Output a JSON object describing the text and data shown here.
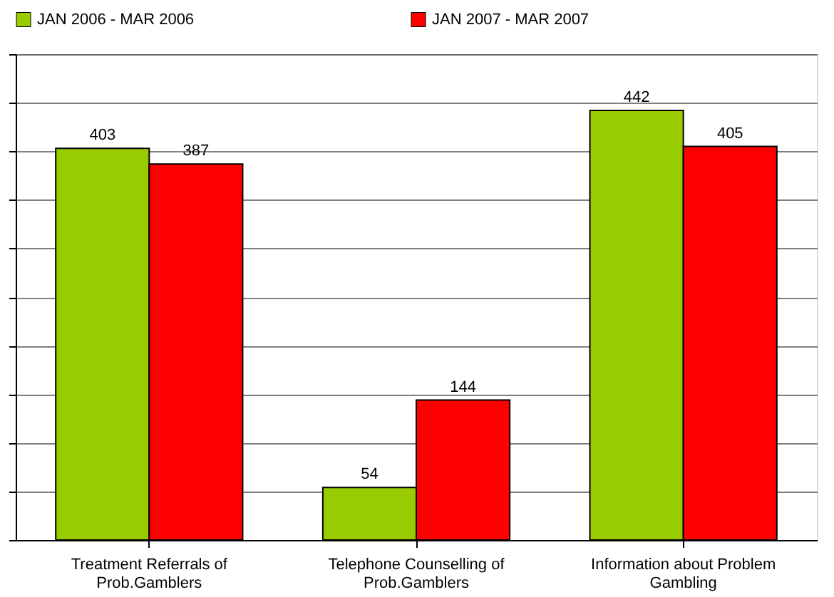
{
  "chart_data": {
    "type": "bar",
    "categories": [
      "Treatment Referrals of\nProb.Gamblers",
      "Telephone Counselling of\nProb.Gamblers",
      "Information about Problem\nGambling"
    ],
    "series": [
      {
        "name": "JAN 2006 - MAR 2006",
        "color": "#99cc00",
        "values": [
          403,
          54,
          442
        ]
      },
      {
        "name": "JAN 2007 - MAR 2007",
        "color": "#ff0000",
        "values": [
          387,
          144,
          405
        ]
      }
    ],
    "ylim": [
      0,
      500
    ],
    "yticks": [
      {
        "value": 0,
        "label": null
      },
      {
        "value": 50,
        "label": null
      },
      {
        "value": 100,
        "label": null
      },
      {
        "value": 150,
        "label": null
      },
      {
        "value": 200,
        "label": null
      },
      {
        "value": 250,
        "label": null
      },
      {
        "value": 300,
        "label": null
      },
      {
        "value": 350,
        "label": null
      },
      {
        "value": 400,
        "label": null
      },
      {
        "value": 450,
        "label": null
      },
      {
        "value": 500,
        "label": null
      }
    ],
    "tick_labels": "x",
    "grid": "y",
    "legend": "top",
    "data_labels": true
  }
}
